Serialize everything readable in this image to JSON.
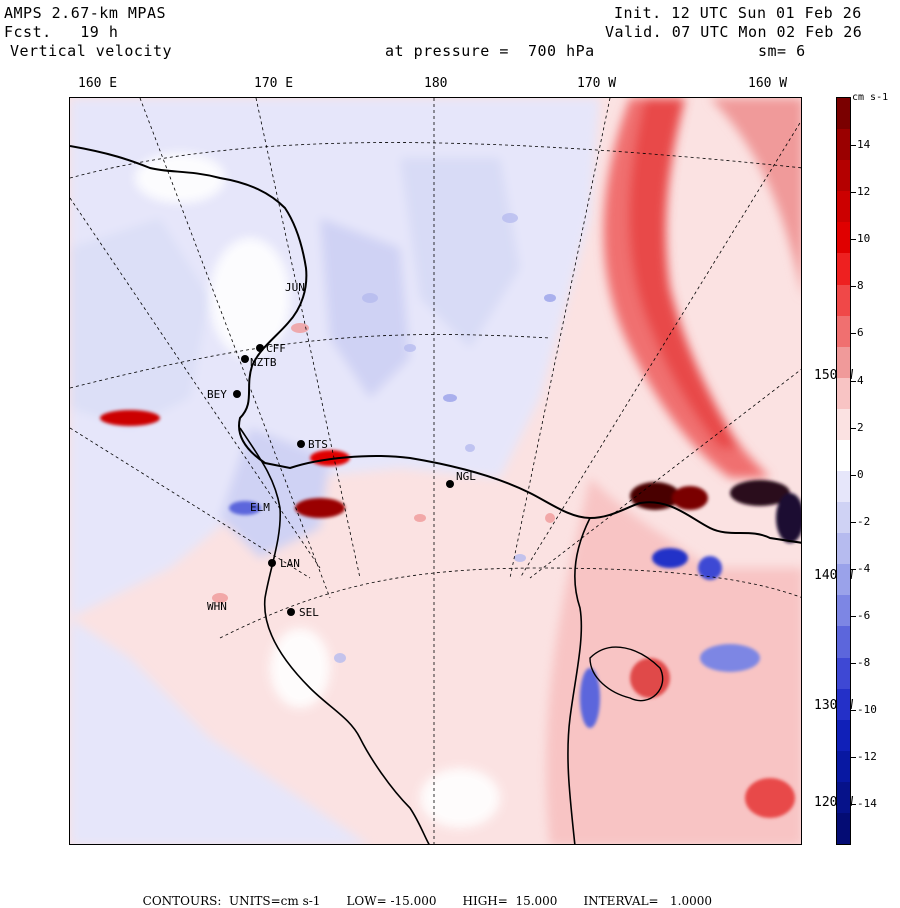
{
  "header": {
    "model": "AMPS 2.67-km MPAS",
    "forecast": "Fcst.   19 h",
    "field": "Vertical velocity",
    "init": "Init. 12 UTC Sun 01 Feb 26",
    "valid": "Valid. 07 UTC Mon 02 Feb 26",
    "pressure": "at pressure =  700 hPa",
    "smoothing": "sm= 6"
  },
  "longitude_labels": [
    "160 E",
    "170 E",
    "180",
    "170 W",
    "160 W"
  ],
  "latitude_labels": [
    "150 W",
    "140 W",
    "130 W",
    "120 W"
  ],
  "stations": [
    {
      "name": "JUN"
    },
    {
      "name": "CFF"
    },
    {
      "name": "NZTB"
    },
    {
      "name": "BEY"
    },
    {
      "name": "BTS"
    },
    {
      "name": "NGL"
    },
    {
      "name": "ELM"
    },
    {
      "name": "LAN"
    },
    {
      "name": "WHN"
    },
    {
      "name": "SEL"
    }
  ],
  "colorbar": {
    "units": "cm s-1",
    "labels": [
      "14",
      "12",
      "10",
      "8",
      "6",
      "4",
      "2",
      "0",
      "-2",
      "-4",
      "-6",
      "-8",
      "-10",
      "-12",
      "-14"
    ],
    "colors": [
      "#7a0000",
      "#9a0000",
      "#b40000",
      "#cc0000",
      "#e00000",
      "#ee2020",
      "#f04848",
      "#f07070",
      "#f09a9a",
      "#f8c4c4",
      "#fbe2e2",
      "#ffffff",
      "#e6e6fa",
      "#cfd2f4",
      "#b6bbef",
      "#9aa2ea",
      "#7d86e4",
      "#5c66dc",
      "#3e48d4",
      "#2430c8",
      "#1020b8",
      "#0818a2",
      "#06128a",
      "#040c74"
    ]
  },
  "footer": {
    "contours": "CONTOURS:  UNITS=cm s-1",
    "low": "LOW= -15.000",
    "high": "HIGH=  15.000",
    "interval": "INTERVAL=   1.0000"
  }
}
